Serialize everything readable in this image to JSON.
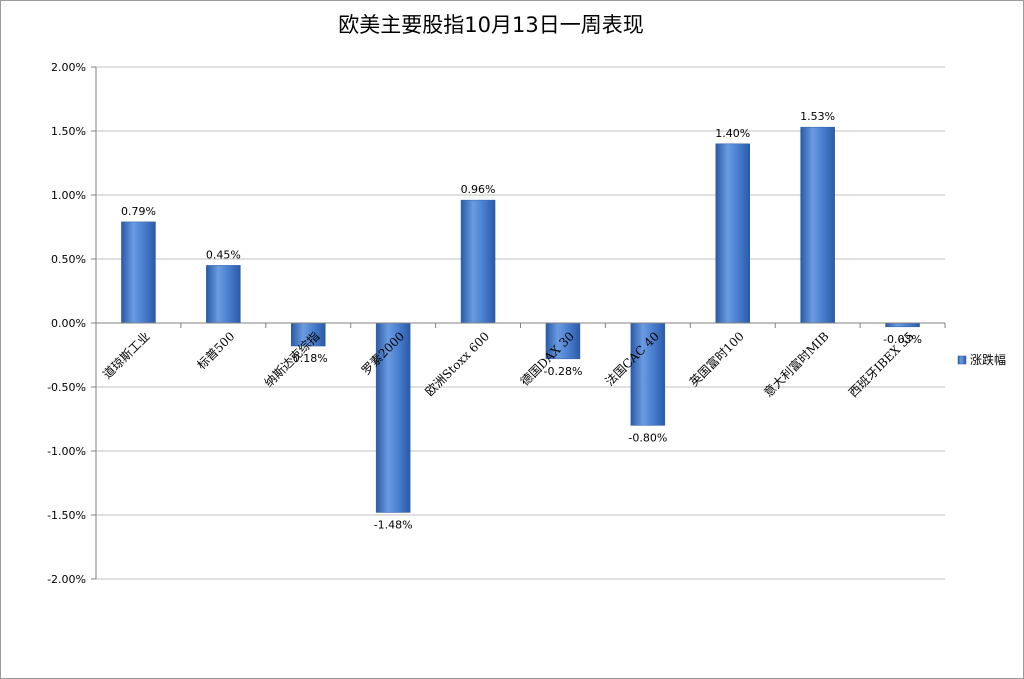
{
  "chart_data": {
    "type": "bar",
    "title": "欧美主要股指10月13日一周表现",
    "categories": [
      "道琼斯工业",
      "标普500",
      "纳斯达克综指",
      "罗素2000",
      "欧洲Stoxx 600",
      "德国DAX 30",
      "法国CAC 40",
      "英国富时100",
      "意大利富时MIB",
      "西班牙IBEX 35"
    ],
    "series": [
      {
        "name": "涨跌幅",
        "values": [
          0.79,
          0.45,
          -0.18,
          -1.48,
          0.96,
          -0.28,
          -0.8,
          1.4,
          1.53,
          -0.03
        ],
        "labels": [
          "0.79%",
          "0.45%",
          "-0.18%",
          "-1.48%",
          "0.96%",
          "-0.28%",
          "-0.80%",
          "1.40%",
          "1.53%",
          "-0.03%"
        ]
      }
    ],
    "ylim": [
      -2.0,
      2.0
    ],
    "yticks": [
      2.0,
      1.5,
      1.0,
      0.5,
      0.0,
      -0.5,
      -1.0,
      -1.5,
      -2.0
    ],
    "ytick_labels": [
      "2.00%",
      "1.50%",
      "1.00%",
      "0.50%",
      "0.00%",
      "-0.50%",
      "-1.00%",
      "-1.50%",
      "-2.00%"
    ],
    "xlabel": "",
    "ylabel": "",
    "grid": true,
    "legend_position": "right",
    "colors": {
      "bar_light": "#6a9be0",
      "bar_mid": "#4a7fcf",
      "bar_dark": "#2a5aa6",
      "grid": "#c0c0c0",
      "axis": "#808080"
    }
  }
}
